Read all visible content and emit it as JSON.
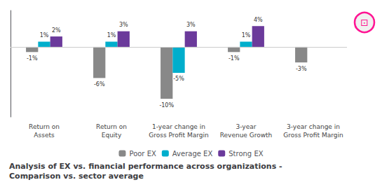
{
  "chart_data": {
    "type": "bar",
    "title": "Analysis of EX vs. financial performance across organizations -\nComparison vs. sector average",
    "categories": [
      "Return on\nAssets",
      "Return on\nEquity",
      "1-year change in\nGross Profit Margin",
      "3-year\nRevenue Growth",
      "3-year change in\nGross Profit Margin"
    ],
    "series": [
      {
        "name": "Poor EX",
        "color": "#888888",
        "values": [
          -1,
          -6,
          -10,
          -1,
          -3
        ],
        "value_labels": [
          "-1%",
          "-6%",
          "-10%",
          "-1%",
          "-3%"
        ]
      },
      {
        "name": "Average EX",
        "color": "#00AECC",
        "values": [
          1,
          1,
          -5,
          1,
          null
        ],
        "value_labels": [
          "1%",
          "1%",
          "-5%",
          "1%",
          null
        ]
      },
      {
        "name": "Strong EX",
        "color": "#6B3A9B",
        "values": [
          2,
          3,
          3,
          4,
          null
        ],
        "value_labels": [
          "2%",
          "3%",
          "3%",
          "4%",
          null
        ]
      }
    ],
    "ylim": [
      -13.5,
      7.0
    ],
    "grid": false,
    "legend": "bottom",
    "data_labels": true,
    "tick_labels": "x",
    "annotations": [
      {
        "text": "⊡",
        "color": "#FF1493"
      }
    ]
  }
}
